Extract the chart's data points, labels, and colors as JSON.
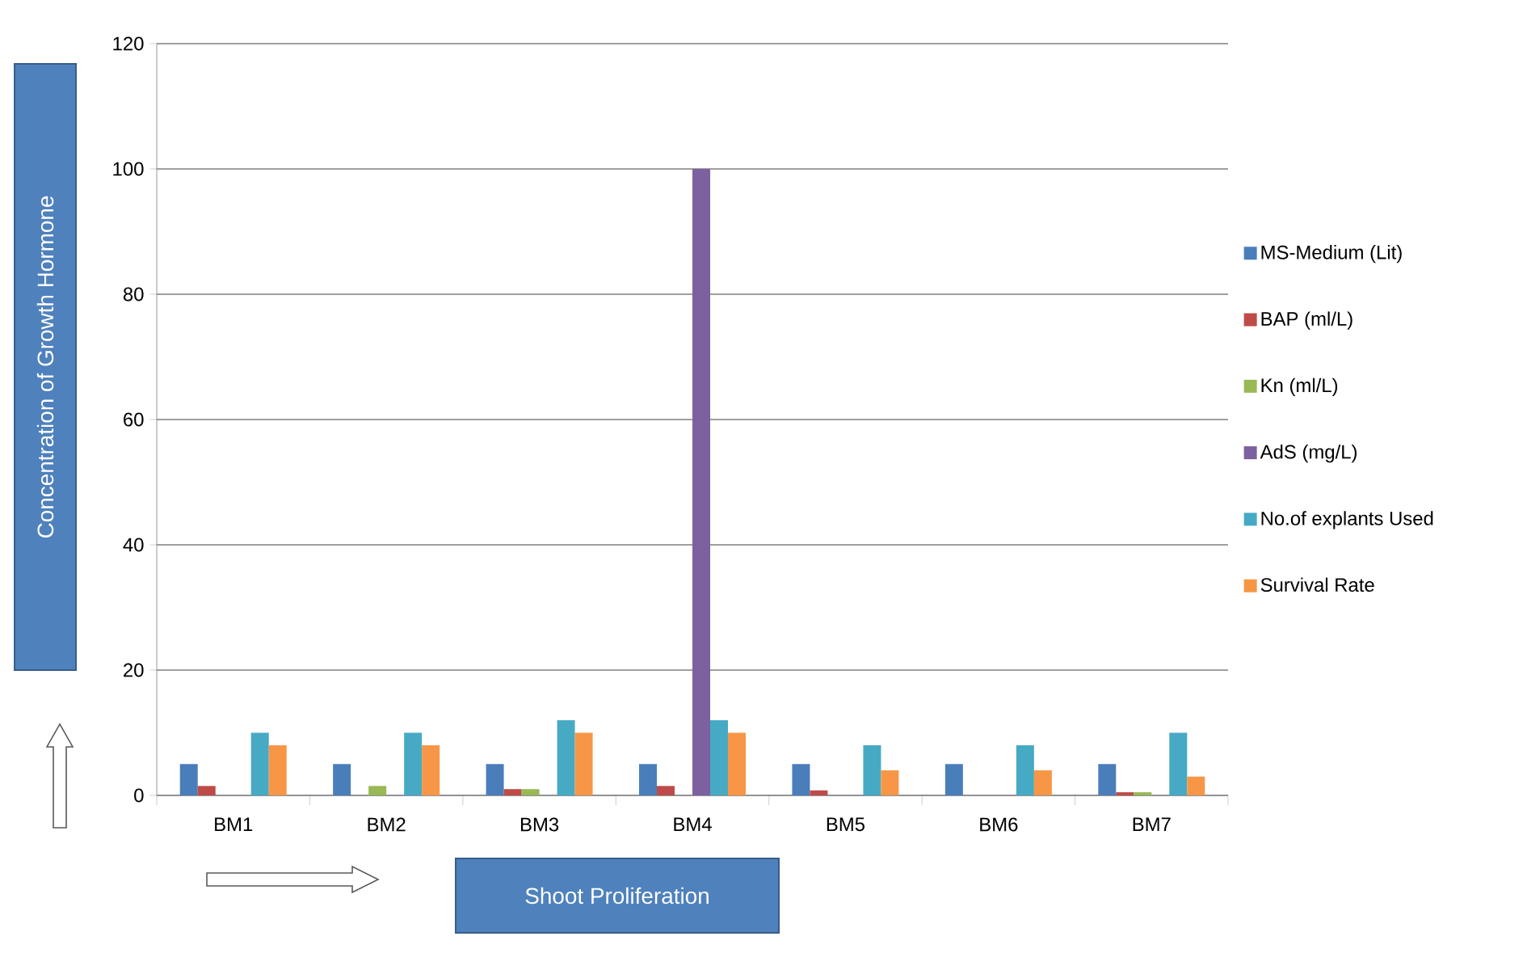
{
  "chart_data": {
    "type": "bar",
    "xlabel": "Shoot Proliferation",
    "ylabel": "Concentration of Growth Hormone",
    "categories": [
      "BM1",
      "BM2",
      "BM3",
      "BM4",
      "BM5",
      "BM6",
      "BM7"
    ],
    "series": [
      {
        "name": "MS-Medium (Lit)",
        "color": "#4a7ebb",
        "values": [
          5,
          5,
          5,
          5,
          5,
          5,
          5
        ]
      },
      {
        "name": "BAP (ml/L)",
        "color": "#be4b48",
        "values": [
          1.5,
          0,
          1,
          1.5,
          0.8,
          0,
          0.5
        ]
      },
      {
        "name": "Kn (ml/L)",
        "color": "#98b954",
        "values": [
          0,
          1.5,
          1,
          0,
          0,
          0,
          0.5
        ]
      },
      {
        "name": "AdS (mg/L)",
        "color": "#7d60a0",
        "values": [
          0,
          0,
          0,
          100,
          0,
          0,
          0
        ]
      },
      {
        "name": "No.of explants Used",
        "color": "#46aac5",
        "values": [
          10,
          10,
          12,
          12,
          8,
          8,
          10
        ]
      },
      {
        "name": "Survival Rate",
        "color": "#f79646",
        "values": [
          8,
          8,
          10,
          10,
          4,
          4,
          3
        ]
      }
    ],
    "ylim": [
      0,
      120
    ],
    "yticks": [
      0,
      20,
      40,
      60,
      80,
      100,
      120
    ],
    "grid": "y",
    "legend": "right"
  }
}
